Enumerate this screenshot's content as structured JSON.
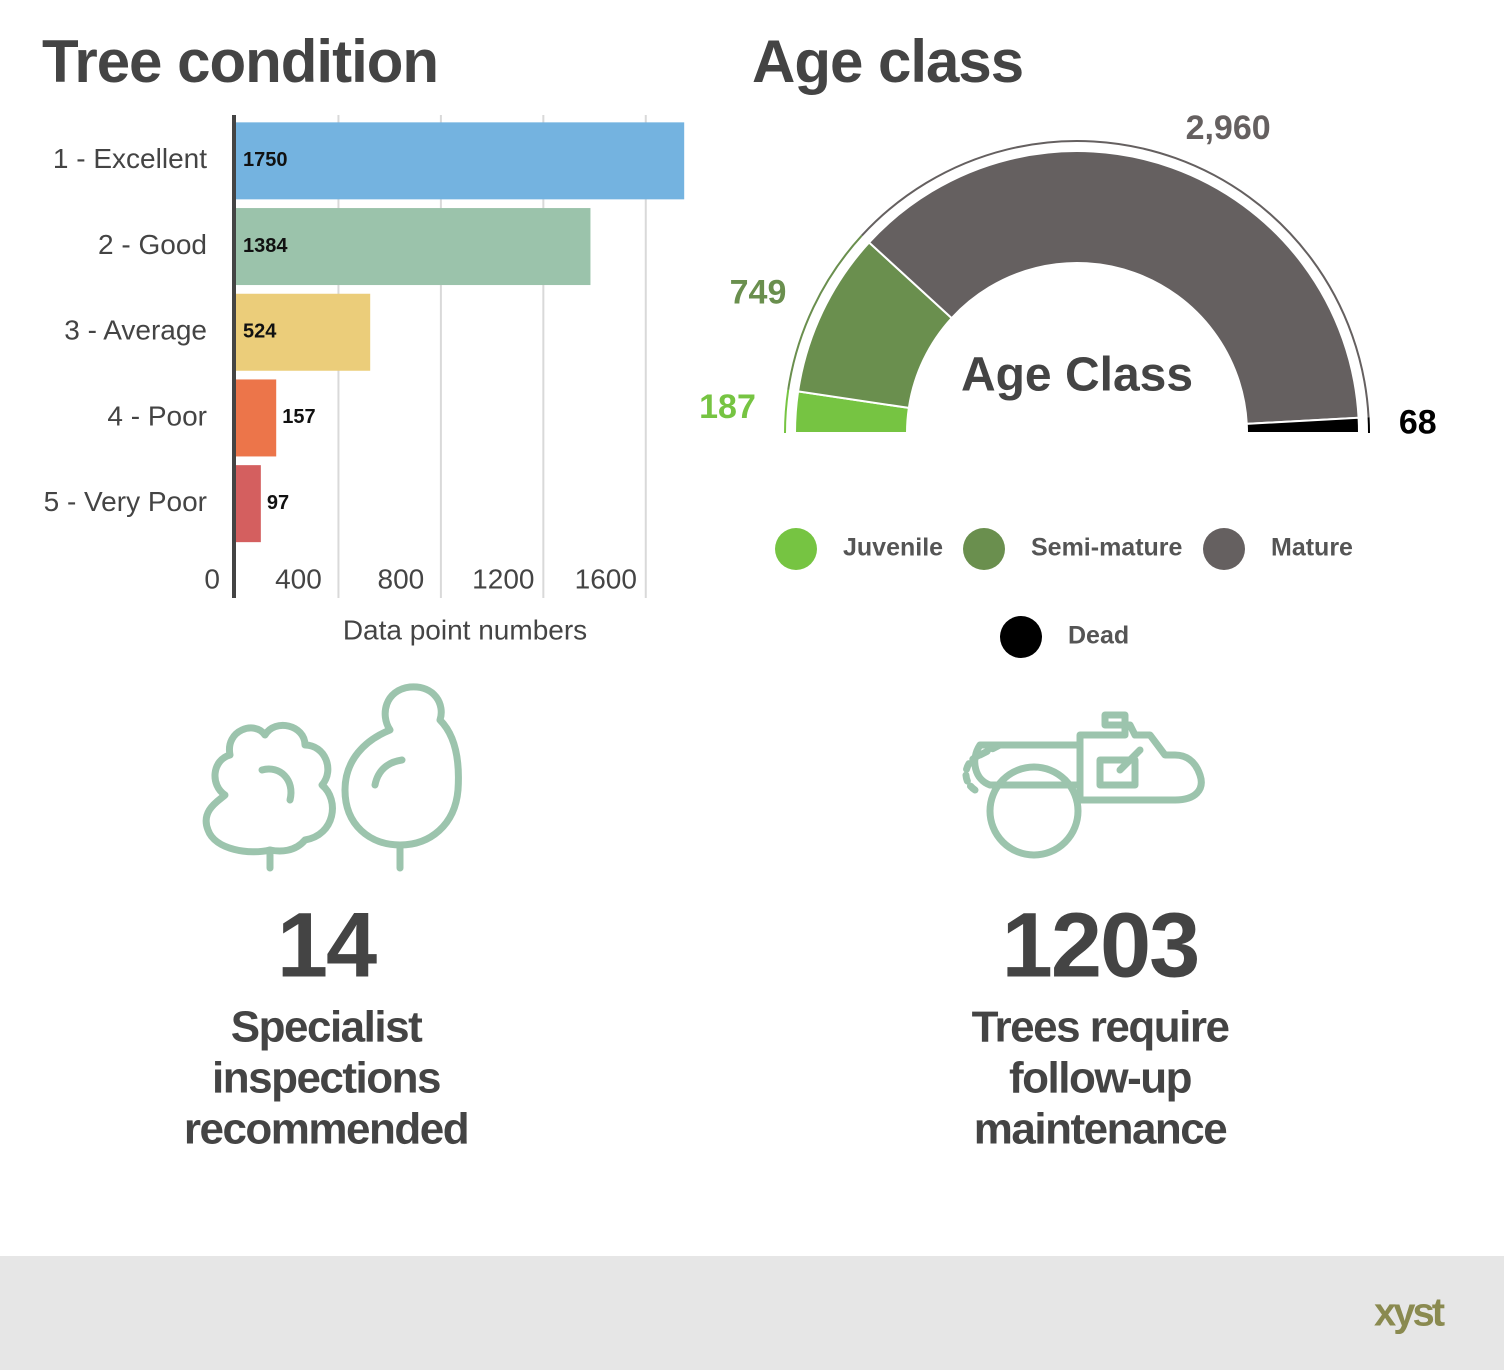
{
  "chart_data": [
    {
      "type": "bar",
      "orientation": "horizontal",
      "title": "Tree condition",
      "categories": [
        "1 - Excellent",
        "2 - Good",
        "3 - Average",
        "4 - Poor",
        "5 - Very Poor"
      ],
      "values": [
        1750,
        1384,
        524,
        157,
        97
      ],
      "colors": [
        "#74b3e0",
        "#9bc3ab",
        "#ebcd7a",
        "#ec754a",
        "#d45f5f"
      ],
      "xlim": [
        0,
        1800
      ],
      "xticks": [
        0,
        400,
        800,
        1200,
        1600
      ],
      "grid": true,
      "x_label": "Data point numbers"
    },
    {
      "type": "semi-donut",
      "title": "Age class",
      "center_label": "Age Class",
      "categories": [
        "Juvenile",
        "Semi-mature",
        "Mature",
        "Dead"
      ],
      "values": [
        187,
        749,
        2960,
        68
      ],
      "value_labels": [
        "187",
        "749",
        "2,960",
        "68"
      ],
      "colors": [
        "#76c442",
        "#6a8f4e",
        "#656060",
        "#000000"
      ]
    }
  ],
  "stats": [
    {
      "value": "14",
      "lines": [
        "Specialist",
        "inspections",
        "recommended"
      ]
    },
    {
      "value": "1203",
      "lines": [
        "Trees require",
        "follow-up",
        "maintenance"
      ]
    }
  ],
  "footer": {
    "logo": "xyst"
  }
}
